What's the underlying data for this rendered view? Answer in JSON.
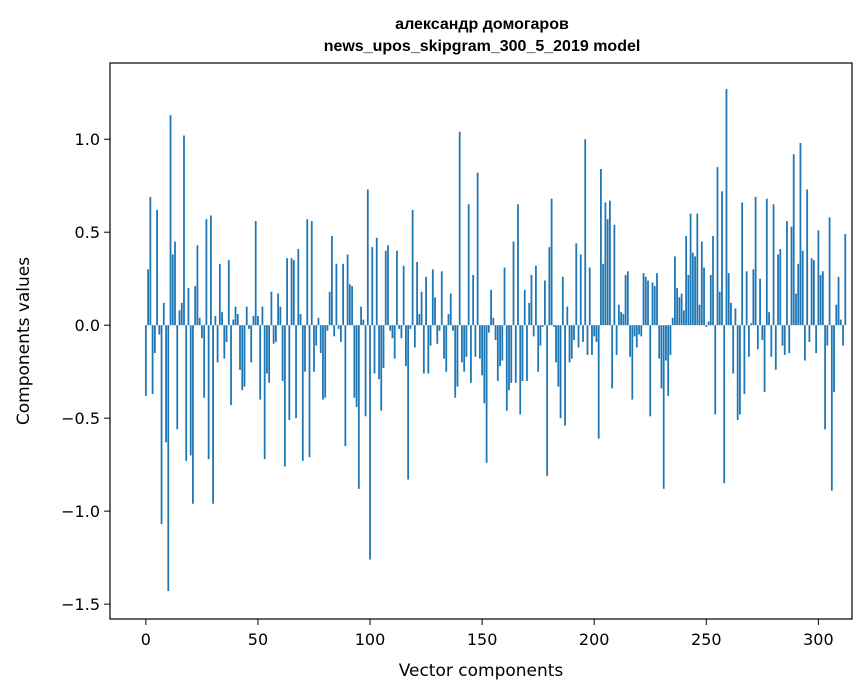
{
  "chart_data": {
    "type": "bar",
    "title_lines": [
      "александр домогаров",
      "news_upos_skipgram_300_5_2019 model"
    ],
    "xlabel": "Vector components",
    "ylabel": "Components values",
    "xlim": [
      -16,
      315
    ],
    "ylim": [
      -1.58,
      1.41
    ],
    "xticks": [
      0,
      50,
      100,
      150,
      200,
      250,
      300
    ],
    "yticks": [
      -1.5,
      -1.0,
      -0.5,
      0.0,
      0.5,
      1.0
    ],
    "ytick_labels": [
      "−1.5",
      "−1.0",
      "−0.5",
      "0.0",
      "0.5",
      "1.0"
    ],
    "bar_color": "#1f77b4",
    "grid": false,
    "values": [
      -0.38,
      0.3,
      0.69,
      -0.37,
      -0.15,
      0.62,
      -0.05,
      -1.07,
      0.12,
      -0.63,
      -1.43,
      1.13,
      0.38,
      0.45,
      -0.56,
      0.08,
      0.12,
      1.02,
      -0.73,
      0.2,
      -0.7,
      -0.96,
      0.21,
      0.43,
      0.04,
      -0.07,
      -0.39,
      0.57,
      -0.72,
      0.59,
      -0.96,
      0.05,
      -0.2,
      0.33,
      0.07,
      -0.18,
      -0.09,
      0.35,
      -0.43,
      0.03,
      0.1,
      0.06,
      -0.24,
      -0.35,
      -0.33,
      0.1,
      -0.02,
      -0.2,
      0.05,
      0.56,
      0.05,
      -0.4,
      0.1,
      -0.72,
      -0.26,
      -0.31,
      0.18,
      -0.1,
      -0.09,
      0.17,
      0.1,
      -0.3,
      -0.76,
      0.36,
      -0.51,
      0.36,
      0.35,
      -0.5,
      0.41,
      0.06,
      -0.73,
      -0.25,
      0.57,
      -0.71,
      0.56,
      -0.25,
      -0.11,
      0.04,
      -0.15,
      -0.4,
      -0.39,
      -0.03,
      0.18,
      0.48,
      -0.06,
      0.33,
      -0.02,
      -0.09,
      0.33,
      -0.65,
      0.38,
      0.22,
      0.21,
      -0.39,
      -0.44,
      -0.88,
      0.1,
      0.03,
      -0.49,
      0.73,
      -1.26,
      0.42,
      -0.26,
      0.47,
      -0.29,
      -0.46,
      -0.23,
      0.4,
      0.43,
      -0.03,
      -0.07,
      -0.18,
      0.4,
      -0.02,
      -0.07,
      0.32,
      -0.22,
      -0.83,
      -0.02,
      0.62,
      -0.12,
      0.34,
      0.06,
      0.18,
      -0.26,
      0.26,
      -0.26,
      -0.11,
      0.3,
      0.15,
      -0.1,
      -0.03,
      0.29,
      -0.18,
      -0.25,
      0.06,
      0.17,
      -0.03,
      -0.39,
      -0.33,
      1.04,
      -0.2,
      -0.25,
      -0.17,
      0.65,
      -0.31,
      0.27,
      -0.17,
      0.82,
      -0.18,
      -0.27,
      -0.42,
      -0.74,
      -0.04,
      0.19,
      0.04,
      -0.08,
      -0.3,
      -0.22,
      -0.19,
      0.31,
      -0.46,
      -0.35,
      -0.31,
      0.45,
      -0.31,
      0.65,
      -0.48,
      -0.3,
      0.19,
      -0.3,
      0.12,
      0.27,
      -0.06,
      0.32,
      -0.25,
      -0.11,
      -0.01,
      0.24,
      -0.81,
      0.42,
      0.68,
      -0.01,
      -0.2,
      -0.33,
      -0.5,
      0.26,
      -0.54,
      0.1,
      -0.2,
      -0.18,
      -0.08,
      0.44,
      -0.12,
      0.38,
      -0.09,
      1.0,
      -0.16,
      0.31,
      -0.16,
      -0.06,
      -0.09,
      -0.61,
      0.84,
      0.33,
      0.66,
      0.57,
      0.67,
      -0.34,
      0.54,
      -0.16,
      0.11,
      0.07,
      0.06,
      0.27,
      0.29,
      -0.17,
      -0.4,
      -0.06,
      -0.12,
      -0.05,
      -0.06,
      0.28,
      0.26,
      0.24,
      -0.49,
      0.23,
      0.21,
      0.28,
      -0.18,
      -0.34,
      -0.88,
      -0.19,
      -0.38,
      -0.16,
      0.04,
      0.37,
      0.2,
      0.15,
      0.17,
      0.08,
      0.48,
      0.27,
      0.6,
      0.39,
      0.37,
      0.6,
      0.11,
      0.45,
      0.31,
      -0.01,
      0.02,
      0.27,
      0.48,
      -0.48,
      0.85,
      0.18,
      0.72,
      -0.85,
      1.27,
      0.28,
      0.12,
      -0.26,
      0.09,
      -0.51,
      -0.48,
      0.66,
      -0.37,
      0.29,
      -0.17,
      0.01,
      0.3,
      0.69,
      -0.13,
      0.25,
      -0.08,
      -0.36,
      0.68,
      0.07,
      -0.17,
      0.65,
      -0.24,
      0.38,
      0.41,
      -0.11,
      -0.16,
      0.56,
      -0.15,
      0.53,
      0.92,
      0.17,
      0.33,
      0.98,
      0.4,
      -0.19,
      0.73,
      -0.09,
      0.36,
      0.35,
      -0.15,
      0.51,
      0.27,
      0.29,
      -0.56,
      -0.11,
      0.58,
      -0.89,
      -0.36,
      0.11,
      0.26,
      0.03,
      -0.11,
      0.49
    ]
  }
}
